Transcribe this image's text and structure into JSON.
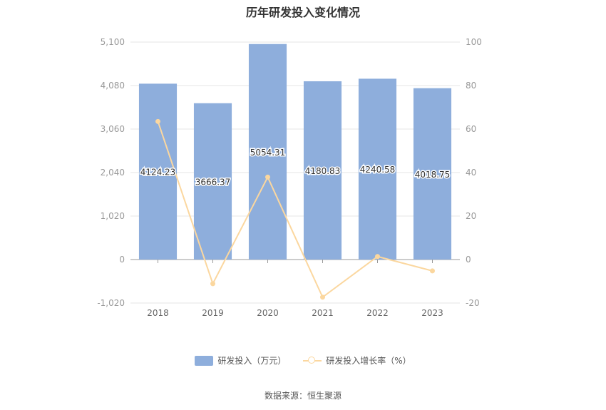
{
  "chart_data": {
    "type": "bar",
    "title": "历年研发投入变化情况",
    "categories": [
      "2018",
      "2019",
      "2020",
      "2021",
      "2022",
      "2023"
    ],
    "series": [
      {
        "name": "研发投入（万元）",
        "type": "bar",
        "axis": "left",
        "values": [
          4124.23,
          3666.37,
          5054.31,
          4180.83,
          4240.58,
          4018.75
        ],
        "labels": [
          "4124.23",
          "3666.37",
          "5054.31",
          "4180.83",
          "4240.58",
          "4018.75"
        ]
      },
      {
        "name": "研发投入增长率（%）",
        "type": "line",
        "axis": "right",
        "values": [
          63.5,
          -11.1,
          37.9,
          -17.3,
          1.4,
          -5.2
        ]
      }
    ],
    "y_left": {
      "ylim": [
        -1020,
        5100
      ],
      "ticks": [
        "-1,020",
        "0",
        "1,020",
        "2,040",
        "3,060",
        "4,080",
        "5,100"
      ]
    },
    "y_right": {
      "ylim": [
        -20,
        100
      ],
      "ticks": [
        "-20",
        "0",
        "20",
        "40",
        "60",
        "80",
        "100"
      ]
    },
    "grid": true,
    "legend_position": "bottom"
  },
  "colors": {
    "bar": "#8eaedc",
    "line": "#fbd79f",
    "grid": "#e6e6e6",
    "axis_text": "#999999"
  },
  "source": "数据来源：恒生聚源"
}
